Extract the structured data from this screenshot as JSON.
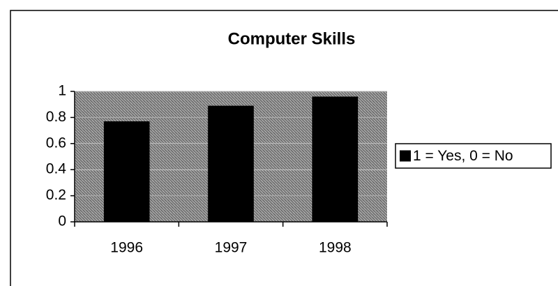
{
  "chart_data": {
    "type": "bar",
    "title": "Computer Skills",
    "categories": [
      "1996",
      "1997",
      "1998"
    ],
    "series": [
      {
        "name": "1 = Yes, 0 = No",
        "color": "#000000",
        "values": [
          0.77,
          0.89,
          0.96
        ]
      }
    ],
    "ylim": [
      0,
      1
    ],
    "yticks": [
      0,
      0.2,
      0.4,
      0.6,
      0.8,
      1
    ],
    "grid": true,
    "legend": "right"
  }
}
